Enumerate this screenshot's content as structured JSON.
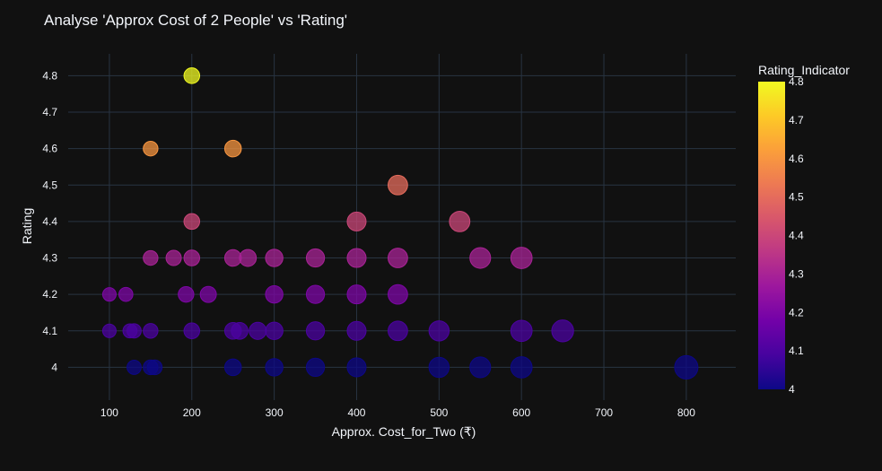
{
  "chart_data": {
    "type": "scatter",
    "title": "Analyse 'Approx Cost of 2 People' vs 'Rating'",
    "xlabel": "Approx. Cost_for_Two (₹)",
    "ylabel": "Rating",
    "xlim": [
      50,
      860
    ],
    "ylim": [
      3.91,
      4.86
    ],
    "x_ticks": [
      100,
      200,
      300,
      400,
      500,
      600,
      700,
      800
    ],
    "y_ticks": [
      4,
      4.1,
      4.2,
      4.3,
      4.4,
      4.5,
      4.6,
      4.7,
      4.8
    ],
    "grid": true,
    "colorscale": "plasma",
    "colorbar": {
      "title": "Rating_Indicator",
      "range": [
        4,
        4.8
      ],
      "ticks": [
        4,
        4.1,
        4.2,
        4.3,
        4.4,
        4.5,
        4.6,
        4.7,
        4.8
      ]
    },
    "size_encodes": "Approx. Cost_for_Two (₹)",
    "points": [
      {
        "x": 200,
        "y": 4.8
      },
      {
        "x": 150,
        "y": 4.6
      },
      {
        "x": 250,
        "y": 4.6
      },
      {
        "x": 450,
        "y": 4.5
      },
      {
        "x": 200,
        "y": 4.4
      },
      {
        "x": 400,
        "y": 4.4
      },
      {
        "x": 525,
        "y": 4.4
      },
      {
        "x": 150,
        "y": 4.3
      },
      {
        "x": 178,
        "y": 4.3
      },
      {
        "x": 200,
        "y": 4.3
      },
      {
        "x": 250,
        "y": 4.3
      },
      {
        "x": 268,
        "y": 4.3
      },
      {
        "x": 300,
        "y": 4.3
      },
      {
        "x": 350,
        "y": 4.3
      },
      {
        "x": 400,
        "y": 4.3
      },
      {
        "x": 450,
        "y": 4.3
      },
      {
        "x": 550,
        "y": 4.3
      },
      {
        "x": 600,
        "y": 4.3
      },
      {
        "x": 100,
        "y": 4.2
      },
      {
        "x": 120,
        "y": 4.2
      },
      {
        "x": 193,
        "y": 4.2
      },
      {
        "x": 220,
        "y": 4.2
      },
      {
        "x": 300,
        "y": 4.2
      },
      {
        "x": 350,
        "y": 4.2
      },
      {
        "x": 400,
        "y": 4.2
      },
      {
        "x": 450,
        "y": 4.2
      },
      {
        "x": 100,
        "y": 4.1
      },
      {
        "x": 125,
        "y": 4.1
      },
      {
        "x": 130,
        "y": 4.1
      },
      {
        "x": 150,
        "y": 4.1
      },
      {
        "x": 200,
        "y": 4.1
      },
      {
        "x": 250,
        "y": 4.1
      },
      {
        "x": 258,
        "y": 4.1
      },
      {
        "x": 280,
        "y": 4.1
      },
      {
        "x": 300,
        "y": 4.1
      },
      {
        "x": 350,
        "y": 4.1
      },
      {
        "x": 400,
        "y": 4.1
      },
      {
        "x": 450,
        "y": 4.1
      },
      {
        "x": 500,
        "y": 4.1
      },
      {
        "x": 600,
        "y": 4.1
      },
      {
        "x": 650,
        "y": 4.1
      },
      {
        "x": 130,
        "y": 4.0
      },
      {
        "x": 150,
        "y": 4.0
      },
      {
        "x": 155,
        "y": 4.0
      },
      {
        "x": 250,
        "y": 4.0
      },
      {
        "x": 300,
        "y": 4.0
      },
      {
        "x": 350,
        "y": 4.0
      },
      {
        "x": 400,
        "y": 4.0
      },
      {
        "x": 500,
        "y": 4.0
      },
      {
        "x": 550,
        "y": 4.0
      },
      {
        "x": 600,
        "y": 4.0
      },
      {
        "x": 800,
        "y": 4.0
      }
    ]
  }
}
